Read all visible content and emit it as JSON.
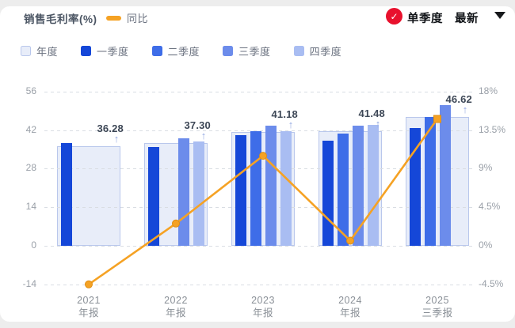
{
  "header": {
    "title": "销售毛利率(%)",
    "yoy_legend": "同比",
    "quarter_mode_label": "单季度",
    "latest_label": "最新",
    "check_icon": "✓"
  },
  "colors": {
    "accent_orange": "#F5A224",
    "badge_red": "#E8112D",
    "annual_fill": "#E8EDF9",
    "annual_border": "#B9C7EC",
    "q1_blue": "#1547D8",
    "q2_blue": "#3E6DE8",
    "q3_blue": "#6C8CEB",
    "q4_blue": "#A9BDF2",
    "grid_gray": "#D9DDE3",
    "axis_text": "#9AA0A8",
    "label_dark": "#3D4756"
  },
  "legend": {
    "items": [
      {
        "label": "年度",
        "color": "#E8EDF9",
        "border": "#B9C7EC"
      },
      {
        "label": "一季度",
        "color": "#1547D8"
      },
      {
        "label": "二季度",
        "color": "#3E6DE8"
      },
      {
        "label": "三季度",
        "color": "#6C8CEB"
      },
      {
        "label": "四季度",
        "color": "#A9BDF2"
      }
    ]
  },
  "chart_data": {
    "type": "bar",
    "title": "销售毛利率(%)",
    "categories": [
      "2021 年报",
      "2022 年报",
      "2023 年报",
      "2024 年报",
      "2025 三季报"
    ],
    "category_lines": [
      [
        "2021",
        "年报"
      ],
      [
        "2022",
        "年报"
      ],
      [
        "2023",
        "年报"
      ],
      [
        "2024",
        "年报"
      ],
      [
        "2025",
        "三季报"
      ]
    ],
    "series": [
      {
        "name": "年度",
        "type": "bar",
        "values": [
          36.28,
          37.3,
          41.18,
          41.48,
          46.62
        ],
        "data_labels": [
          "36.28",
          "37.30",
          "41.18",
          "41.48",
          "46.62"
        ]
      },
      {
        "name": "一季度",
        "type": "bar",
        "values": [
          37.3,
          35.8,
          40.3,
          38.2,
          42.8
        ]
      },
      {
        "name": "二季度",
        "type": "bar",
        "values": [
          null,
          null,
          41.6,
          40.6,
          46.9
        ]
      },
      {
        "name": "三季度",
        "type": "bar",
        "values": [
          null,
          39.0,
          43.5,
          43.5,
          51.2
        ]
      },
      {
        "name": "四季度",
        "type": "bar",
        "values": [
          null,
          37.8,
          41.5,
          43.8,
          null
        ]
      }
    ],
    "line_series": {
      "name": "同比",
      "values": [
        -4.5,
        2.6,
        10.5,
        0.6,
        14.8
      ],
      "unit": "%",
      "axis": "right"
    },
    "left_axis": {
      "ticks": [
        56,
        42,
        28,
        14,
        0,
        -14
      ],
      "range": [
        -14,
        56
      ]
    },
    "right_axis": {
      "ticks": [
        18,
        13.5,
        9,
        4.5,
        0,
        -4.5
      ],
      "tick_labels": [
        "18%",
        "13.5%",
        "9%",
        "4.5%",
        "0%",
        "-4.5%"
      ],
      "range": [
        -4.5,
        18
      ]
    },
    "grid": "dashed",
    "legend_position": "top-left"
  }
}
